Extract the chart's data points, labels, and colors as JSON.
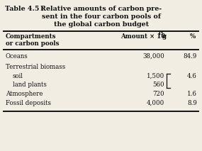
{
  "title_label": "Table 4.5 :",
  "title_text_lines": [
    "Relative amounts of carbon pre-",
    "sent in the four carbon pools of",
    "the global carbon budget"
  ],
  "col1_header_lines": [
    "Compartments",
    "or carbon pools"
  ],
  "col2_header": "Amount × 10",
  "col2_superscript": "15",
  "col2_unit": "g",
  "col3_header": "%",
  "rows": [
    {
      "label": "Oceans",
      "indent": false,
      "amount": "38,000",
      "pct": "84.9",
      "bracket": ""
    },
    {
      "label": "Terrestrial biomass",
      "indent": false,
      "amount": "",
      "pct": "",
      "bracket": ""
    },
    {
      "label": "soil",
      "indent": true,
      "amount": "1,500",
      "pct": "4.6",
      "bracket": "top"
    },
    {
      "label": "land plants",
      "indent": true,
      "amount": "560",
      "pct": "",
      "bracket": "bot"
    },
    {
      "label": "Atmosphere",
      "indent": false,
      "amount": "720",
      "pct": "1.6",
      "bracket": ""
    },
    {
      "label": "Fossil deposits",
      "indent": false,
      "amount": "4,000",
      "pct": "8.9",
      "bracket": ""
    }
  ],
  "bg_color": "#f2ede3",
  "text_color": "#111111",
  "line_color": "#111111",
  "figsize": [
    2.85,
    2.13
  ],
  "dpi": 100
}
